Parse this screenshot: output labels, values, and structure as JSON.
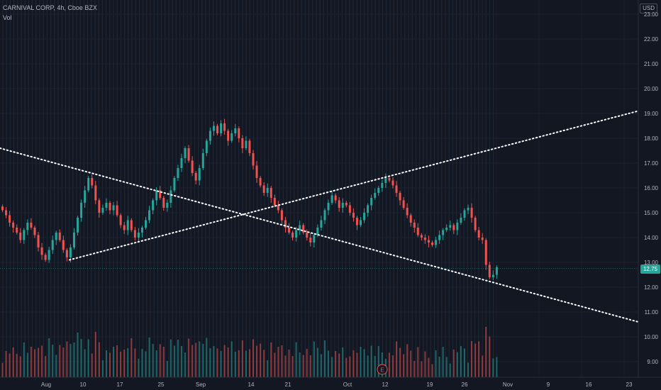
{
  "header": {
    "instrument_line": "CARNIVAL CORP, 4h, Cboe BZX",
    "volume_label": "Vol",
    "currency": "USD"
  },
  "last_price_label": "12.75",
  "earnings_marker": "E",
  "colors": {
    "background": "#131722",
    "bull": "#26a69a",
    "bear": "#ef5350",
    "trendline": "#ffffff",
    "last_price": "#26a69a"
  },
  "chart_data": {
    "type": "candlestick",
    "title": "CARNIVAL CORP, 4h, Cboe BZX",
    "y_axis_ticks": [
      "23.00",
      "22.00",
      "21.00",
      "20.00",
      "19.00",
      "18.00",
      "17.00",
      "16.00",
      "15.00",
      "14.00",
      "13.00",
      "12.00",
      "11.00",
      "10.00",
      "9.00"
    ],
    "x_axis_ticks": [
      "Aug",
      "10",
      "17",
      "25",
      "Sep",
      "14",
      "21",
      "Oct",
      "12",
      "19",
      "26",
      "Nov",
      "9",
      "16",
      "23"
    ],
    "ylim": [
      8.6,
      23.3
    ],
    "last_price": 12.75,
    "trendlines": [
      {
        "name": "descending",
        "from": {
          "x": "Jul 30",
          "y": 17.6
        },
        "to": {
          "x": "Nov 24",
          "y": 10.6
        }
      },
      {
        "name": "ascending",
        "from": {
          "x": "Aug 7",
          "y": 13.1
        },
        "to": {
          "x": "Nov 24",
          "y": 19.1
        }
      }
    ],
    "candles_close": [
      15.1,
      14.9,
      14.6,
      14.4,
      14.2,
      13.9,
      14.3,
      14.6,
      14.4,
      14.1,
      13.6,
      13.3,
      13.1,
      13.5,
      13.9,
      14.2,
      13.9,
      13.5,
      13.2,
      13.6,
      14.2,
      14.8,
      15.4,
      15.9,
      16.4,
      16.1,
      15.5,
      15.0,
      15.2,
      15.4,
      15.1,
      15.3,
      14.9,
      14.5,
      14.3,
      14.7,
      14.3,
      14.0,
      14.2,
      14.4,
      14.7,
      15.1,
      15.5,
      15.9,
      15.6,
      15.2,
      15.4,
      15.9,
      16.4,
      16.8,
      17.2,
      17.6,
      17.1,
      16.6,
      16.3,
      16.8,
      17.4,
      17.9,
      18.3,
      18.5,
      18.2,
      18.6,
      18.3,
      17.9,
      18.2,
      18.4,
      18.0,
      17.6,
      17.9,
      17.4,
      16.9,
      16.4,
      16.1,
      15.8,
      16.0,
      15.6,
      15.3,
      15.1,
      14.7,
      14.4,
      14.2,
      14.0,
      14.3,
      14.5,
      14.2,
      14.0,
      13.8,
      14.1,
      14.4,
      14.7,
      15.1,
      15.4,
      15.7,
      15.5,
      15.2,
      15.4,
      15.3,
      15.0,
      14.8,
      14.5,
      14.7,
      15.0,
      15.3,
      15.6,
      15.8,
      16.0,
      16.2,
      16.4,
      16.3,
      16.1,
      15.8,
      15.5,
      15.2,
      14.9,
      14.6,
      14.4,
      14.1,
      14.0,
      13.9,
      13.8,
      13.7,
      13.9,
      14.1,
      14.3,
      14.4,
      14.5,
      14.3,
      14.6,
      14.8,
      15.1,
      15.2,
      14.8,
      14.3,
      14.0,
      13.9,
      12.9,
      12.4,
      12.5,
      12.8
    ]
  }
}
